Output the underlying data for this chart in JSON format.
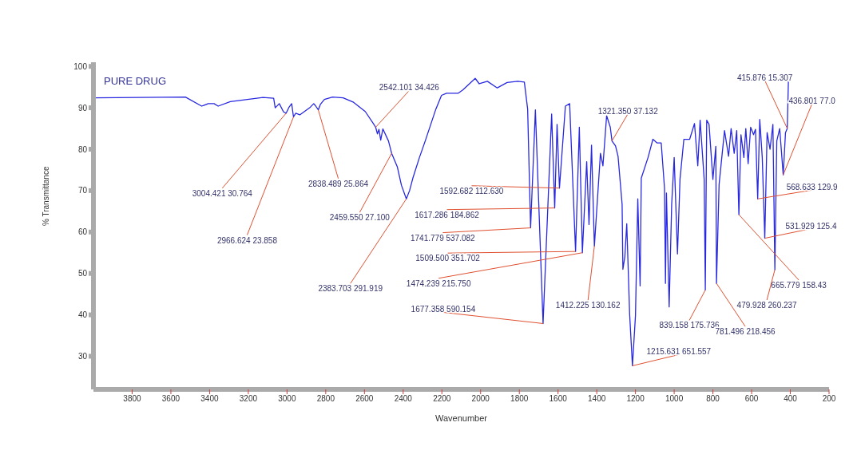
{
  "chart_data": {
    "type": "line",
    "title": "PURE DRUG",
    "xlabel": "Wavenumber",
    "ylabel": "% Transmittance",
    "xlim": [
      4000,
      200
    ],
    "xticks": [
      3800,
      3600,
      3400,
      3200,
      3000,
      2800,
      2600,
      2400,
      2200,
      2000,
      1800,
      1600,
      1400,
      1200,
      1000,
      800,
      600,
      400,
      200
    ],
    "ylim": [
      22,
      101
    ],
    "yticks": [
      30,
      40,
      50,
      60,
      70,
      80,
      90,
      100
    ],
    "grid": false,
    "legend": false,
    "marker": "none",
    "line_style": "solid",
    "series": [
      {
        "color": "#2828e0",
        "x": [
          4000,
          3525,
          3441,
          3407,
          3377,
          3356,
          3293,
          3124,
          3069,
          3061,
          3040,
          3018,
          3004.421,
          2989,
          2976,
          2966.624,
          2955,
          2934,
          2913,
          2883,
          2862,
          2853,
          2838.489,
          2828,
          2807,
          2765,
          2710,
          2659,
          2596,
          2554,
          2542.101,
          2533,
          2525,
          2516,
          2505,
          2476,
          2459.55,
          2430,
          2409,
          2383.703,
          2367,
          2350,
          2316,
          2286,
          2231,
          2202,
          2176,
          2117,
          2092,
          2028,
          2007,
          1965,
          1914,
          1863,
          1808,
          1774,
          1757,
          1741.779,
          1717,
          1677.358,
          1633,
          1617.286,
          1605,
          1592.682,
          1562,
          1540,
          1509.5,
          1490,
          1474.239,
          1452,
          1440,
          1427,
          1412.225,
          1381,
          1368,
          1349,
          1330,
          1321.35,
          1303,
          1290,
          1269,
          1265,
          1255,
          1245,
          1230,
          1215.631,
          1200,
          1188,
          1176,
          1170,
          1135,
          1110,
          1088,
          1067,
          1050,
          1045,
          1040,
          1026,
          1013,
          1000,
          983,
          970,
          950,
          920,
          895,
          878,
          866,
          845,
          839.158,
          832,
          820,
          800,
          785,
          781.496,
          768,
          740,
          719,
          706,
          690,
          677,
          665.779,
          655,
          640,
          630,
          618,
          605,
          590,
          580,
          568.633,
          558,
          545,
          531.929,
          520,
          505,
          490,
          479.928,
          470,
          455,
          436.801,
          425,
          415.876,
          410
        ],
        "values": [
          92.4,
          92.6,
          90.4,
          91,
          91,
          90.4,
          91.5,
          92.5,
          92.3,
          90,
          91,
          89,
          88.7,
          90.2,
          91,
          87.8,
          88.7,
          88.3,
          89,
          90,
          91,
          90.5,
          89.5,
          90.8,
          92,
          92.6,
          92.4,
          91.4,
          89.1,
          86.2,
          85.3,
          83.7,
          84.8,
          82.2,
          84.9,
          82,
          79,
          75.7,
          71.3,
          68,
          70,
          73,
          78,
          82,
          89.7,
          93,
          93.5,
          93.5,
          94.3,
          97.1,
          95.8,
          96.4,
          94.8,
          96.1,
          96.4,
          96.2,
          89.7,
          61,
          89.5,
          37.9,
          88.5,
          65.8,
          86,
          70.6,
          90.4,
          91,
          55.3,
          85.3,
          55,
          77,
          61.8,
          81,
          56.6,
          79,
          76,
          88.1,
          85.3,
          82,
          80.8,
          78.3,
          66.7,
          51,
          54,
          62,
          40,
          27.7,
          39.8,
          68,
          47,
          73,
          78,
          82.4,
          81.5,
          81.5,
          70.6,
          47.6,
          69.4,
          41.9,
          66.7,
          78,
          54.7,
          72.7,
          82.4,
          82.4,
          86.2,
          76,
          87,
          72.7,
          46,
          87,
          86,
          72.7,
          80.7,
          47.6,
          71.5,
          84.5,
          78.3,
          85,
          79,
          84.5,
          64.2,
          83.5,
          78,
          85,
          76.5,
          85.3,
          83.5,
          84.8,
          68,
          87.2,
          78,
          58.5,
          84,
          80,
          86,
          50.9,
          82,
          85,
          73.8,
          84,
          85,
          96.4
        ]
      }
    ],
    "annotations": [
      {
        "text": "3004.421  30.764",
        "x": 3004.421,
        "y": 88.7
      },
      {
        "text": "2966.624  23.858",
        "x": 2966.624,
        "y": 87.8
      },
      {
        "text": "2838.489  25.864",
        "x": 2838.489,
        "y": 89.5
      },
      {
        "text": "2542.101  34.426",
        "x": 2542.101,
        "y": 85.3
      },
      {
        "text": "2459.550  27.100",
        "x": 2459.55,
        "y": 79
      },
      {
        "text": "2383.703  291.919",
        "x": 2383.703,
        "y": 68
      },
      {
        "text": "1592.682  112.630",
        "x": 1592.682,
        "y": 70.6
      },
      {
        "text": "1617.286  184.862",
        "x": 1617.286,
        "y": 65.8
      },
      {
        "text": "1741.779  537.082",
        "x": 1741.779,
        "y": 61
      },
      {
        "text": "1509.500  351.702",
        "x": 1509.5,
        "y": 55.3
      },
      {
        "text": "1474.239  215.750",
        "x": 1474.239,
        "y": 55
      },
      {
        "text": "1677.358  590.154",
        "x": 1677.358,
        "y": 37.9
      },
      {
        "text": "1412.225  130.162",
        "x": 1412.225,
        "y": 56.6
      },
      {
        "text": "1321.350  37.132",
        "x": 1321.35,
        "y": 82
      },
      {
        "text": "1215.631  651.557",
        "x": 1215.631,
        "y": 27.7
      },
      {
        "text": "839.158  175.736",
        "x": 839.158,
        "y": 46
      },
      {
        "text": "781.496  218.456",
        "x": 781.496,
        "y": 47.6
      },
      {
        "text": "665.779  158.43",
        "x": 665.779,
        "y": 64.2
      },
      {
        "text": "479.928  260.237",
        "x": 479.928,
        "y": 50.9
      },
      {
        "text": "568.633  129.9",
        "x": 568.633,
        "y": 68
      },
      {
        "text": "531.929  125.4",
        "x": 531.929,
        "y": 58.5
      },
      {
        "text": "436.801  77.0",
        "x": 436.801,
        "y": 73.8
      },
      {
        "text": "415.876  15.307",
        "x": 415.876,
        "y": 85
      }
    ]
  }
}
